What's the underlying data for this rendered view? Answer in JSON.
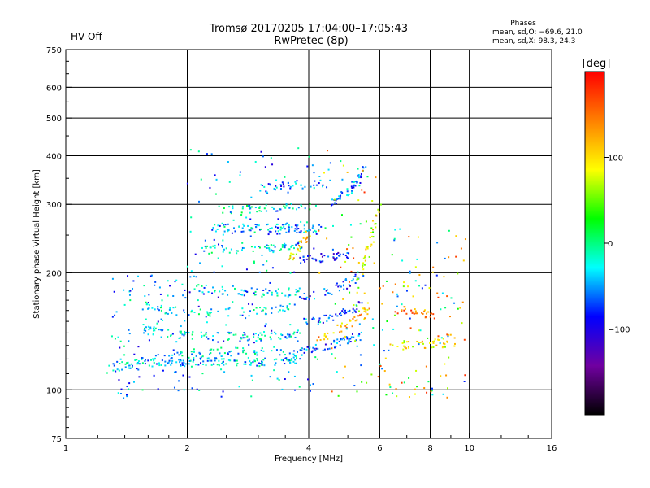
{
  "header": {
    "status": "HV Off",
    "status_color": "#c00000",
    "title_line1": "Tromsø 20170205 17:04:00–17:05:43",
    "title_line2": "RwPretec (8p)"
  },
  "stats": {
    "heading": "Phases",
    "line_o": "mean, sd,O: −69.6, 21.0",
    "line_x": "mean, sd,X:  98.3, 24.3"
  },
  "colorbar": {
    "label": "[deg]",
    "range": [
      -200,
      200
    ],
    "ticks": [
      100,
      0,
      -100
    ],
    "tick_labels": [
      "100",
      "0",
      "−100"
    ],
    "colors": [
      "#ff0000",
      "#ff8000",
      "#ffff00",
      "#00ff00",
      "#00ffff",
      "#0000ff",
      "#7000a0",
      "#000000"
    ]
  },
  "chart_data": {
    "type": "scatter",
    "xlabel": "Frequency [MHz]",
    "ylabel": "Stationary phase Virtual Height [km]",
    "x_scale": "log",
    "y_scale": "log",
    "xlim": [
      1,
      16
    ],
    "ylim": [
      75,
      750
    ],
    "x_ticks": [
      1,
      2,
      4,
      6,
      8,
      10,
      16
    ],
    "x_tick_labels": [
      "1",
      "2",
      "4",
      "6",
      "8",
      "10",
      "16"
    ],
    "y_ticks": [
      75,
      100,
      200,
      300,
      400,
      500,
      600,
      750
    ],
    "y_tick_labels": [
      "75",
      "100",
      "200",
      "300",
      "400",
      "500",
      "600",
      "750"
    ],
    "grid": true,
    "color_variable": "phase [deg]",
    "traces": [
      {
        "x": [
          1.25,
          1.5,
          1.8,
          2.1,
          2.5,
          3.0,
          3.5,
          3.8
        ],
        "y": [
          113,
          117,
          118,
          118,
          118,
          118,
          119,
          120
        ],
        "phase": -40,
        "n": 150
      },
      {
        "x": [
          1.6,
          1.9,
          2.2,
          2.6,
          3.0,
          3.5,
          3.9
        ],
        "y": [
          120,
          122,
          124,
          125,
          126,
          126,
          127
        ],
        "phase": -30,
        "n": 70
      },
      {
        "x": [
          1.5,
          1.7,
          2.0,
          2.5,
          3.0,
          3.5,
          3.8
        ],
        "y": [
          145,
          140,
          138,
          137,
          137,
          138,
          140
        ],
        "phase": -35,
        "n": 100
      },
      {
        "x": [
          1.55,
          1.8,
          2.2,
          2.7,
          3.2,
          3.7
        ],
        "y": [
          165,
          160,
          158,
          158,
          160,
          162
        ],
        "phase": -30,
        "n": 70
      },
      {
        "x": [
          2.1,
          2.5,
          3.0,
          3.5,
          3.8
        ],
        "y": [
          182,
          180,
          178,
          178,
          180
        ],
        "phase": -40,
        "n": 60
      },
      {
        "x": [
          2.2,
          2.6,
          3.1,
          3.5,
          3.8
        ],
        "y": [
          230,
          228,
          230,
          232,
          235
        ],
        "phase": -25,
        "n": 60
      },
      {
        "x": [
          2.3,
          2.8,
          3.3,
          3.8
        ],
        "y": [
          262,
          260,
          262,
          264
        ],
        "phase": -35,
        "n": 60
      },
      {
        "x": [
          2.4,
          2.8,
          3.2,
          3.6,
          4.0
        ],
        "y": [
          290,
          292,
          294,
          295,
          296
        ],
        "phase": -20,
        "n": 50
      },
      {
        "x": [
          3.0,
          3.5,
          4.0,
          4.5
        ],
        "y": [
          330,
          335,
          338,
          340
        ],
        "phase": -60,
        "n": 40
      },
      {
        "x": [
          3.2,
          3.6,
          4.0,
          4.5
        ],
        "y": [
          255,
          258,
          260,
          262
        ],
        "phase": -50,
        "n": 40
      },
      {
        "x": [
          3.9,
          4.2,
          4.6,
          5.0,
          5.4
        ],
        "y": [
          126,
          128,
          131,
          134,
          138
        ],
        "phase": -70,
        "n": 50
      },
      {
        "x": [
          3.9,
          4.3,
          4.7,
          5.0,
          5.4
        ],
        "y": [
          150,
          152,
          156,
          160,
          165
        ],
        "phase": -75,
        "n": 40
      },
      {
        "x": [
          3.8,
          4.2,
          4.6,
          5.0,
          5.3
        ],
        "y": [
          172,
          175,
          180,
          188,
          196
        ],
        "phase": -80,
        "n": 40
      },
      {
        "x": [
          3.8,
          4.2,
          4.6,
          5.0
        ],
        "y": [
          215,
          218,
          220,
          222
        ],
        "phase": -90,
        "n": 40
      },
      {
        "x": [
          4.5,
          5.0,
          5.3,
          5.5
        ],
        "y": [
          300,
          320,
          345,
          370
        ],
        "phase": -60,
        "n": 50
      },
      {
        "x": [
          5.2,
          5.4,
          5.6,
          5.8,
          6.0
        ],
        "y": [
          180,
          200,
          225,
          260,
          300
        ],
        "phase": 80,
        "n": 40
      },
      {
        "x": [
          4.2,
          4.6,
          5.0,
          5.4,
          5.7
        ],
        "y": [
          135,
          140,
          148,
          155,
          165
        ],
        "phase": 120,
        "n": 40
      },
      {
        "x": [
          6.3,
          7.0,
          7.8,
          8.5,
          9.2
        ],
        "y": [
          130,
          130,
          131,
          132,
          134
        ],
        "phase": 100,
        "n": 40
      },
      {
        "x": [
          6.5,
          7.0,
          7.5,
          8.2
        ],
        "y": [
          160,
          160,
          158,
          156
        ],
        "phase": 140,
        "n": 30
      },
      {
        "x": [
          3.6,
          3.8,
          4.0
        ],
        "y": [
          215,
          235,
          250
        ],
        "phase": 100,
        "n": 30
      }
    ],
    "scatter_points": 500
  }
}
